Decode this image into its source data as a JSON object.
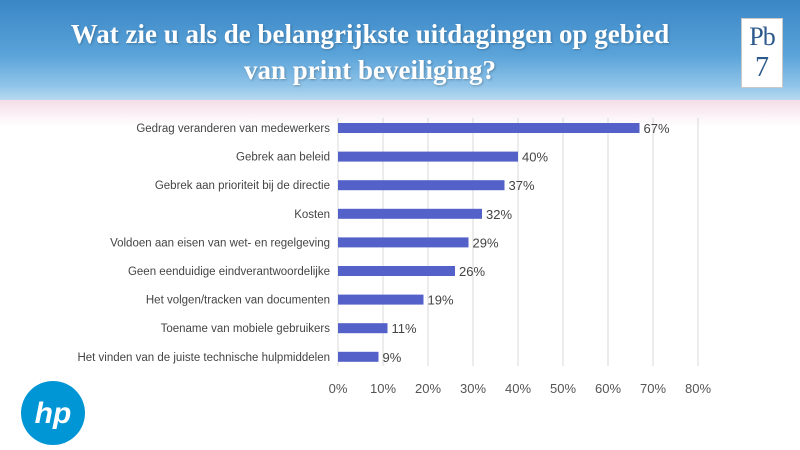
{
  "colors": {
    "bar": "#5361c8",
    "header_top": "#3a86c6",
    "header_bottom": "#b8d9f0",
    "hp_blue": "#0096d6"
  },
  "header": {
    "title_line1": "Wat zie u als de belangrijkste uitdagingen op gebied",
    "title_line2": "van print beveiliging?"
  },
  "logos": {
    "pb7": {
      "line1": "Pb",
      "line2": "7"
    },
    "hp": {
      "text": "hp",
      "icon": "hp-logo-icon"
    }
  },
  "chart_data": {
    "type": "bar",
    "orientation": "horizontal",
    "categories": [
      "Gedrag veranderen van medewerkers",
      "Gebrek aan beleid",
      "Gebrek aan prioriteit bij de directie",
      "Kosten",
      "Voldoen aan eisen van wet- en regelgeving",
      "Geen eenduidige eindverantwoordelijke",
      "Het volgen/tracken van documenten",
      "Toename van mobiele gebruikers",
      "Het vinden van de juiste technische hulpmiddelen"
    ],
    "values": [
      67,
      40,
      37,
      32,
      29,
      26,
      19,
      11,
      9
    ],
    "value_labels": [
      "67%",
      "40%",
      "37%",
      "32%",
      "29%",
      "26%",
      "19%",
      "11%",
      "9%"
    ],
    "xlim": [
      0,
      80
    ],
    "xticks": [
      0,
      10,
      20,
      30,
      40,
      50,
      60,
      70,
      80
    ],
    "xtick_labels": [
      "0%",
      "10%",
      "20%",
      "30%",
      "40%",
      "50%",
      "60%",
      "70%",
      "80%"
    ],
    "grid": true,
    "legend": false
  }
}
